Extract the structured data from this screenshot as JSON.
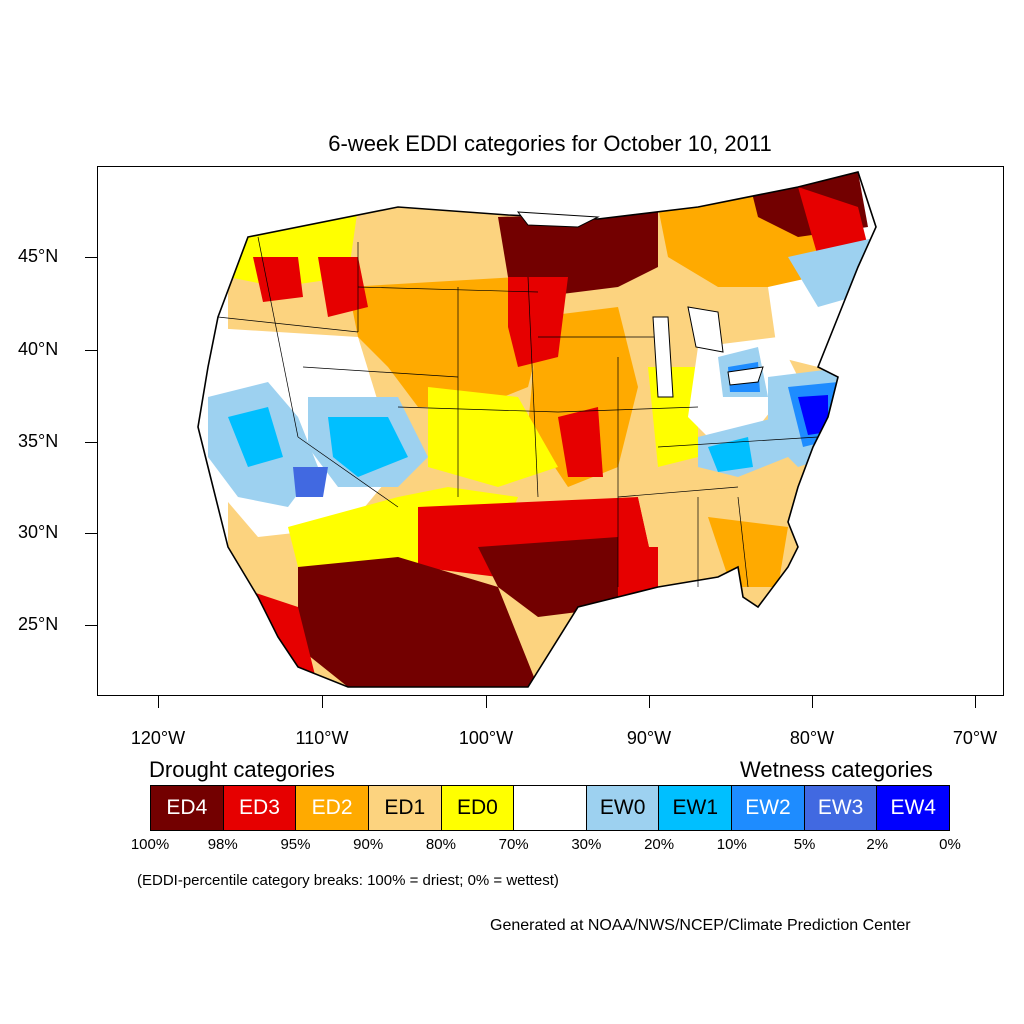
{
  "title": "6-week EDDI categories for October 10, 2011",
  "lat_labels": [
    "45°N",
    "40°N",
    "35°N",
    "30°N",
    "25°N"
  ],
  "lon_labels": [
    "120°W",
    "110°W",
    "100°W",
    "90°W",
    "80°W",
    "70°W"
  ],
  "legend": {
    "drought_heading": "Drought categories",
    "wetness_heading": "Wetness categories",
    "categories": [
      {
        "label": "ED4",
        "color": "#730000",
        "text_color": "#ffffff"
      },
      {
        "label": "ED3",
        "color": "#e60000",
        "text_color": "#ffffff"
      },
      {
        "label": "ED2",
        "color": "#ffaa00",
        "text_color": "#ffffff"
      },
      {
        "label": "ED1",
        "color": "#fcd37f",
        "text_color": "#000000"
      },
      {
        "label": "ED0",
        "color": "#ffff00",
        "text_color": "#000000"
      },
      {
        "label": "",
        "color": "#ffffff",
        "text_color": "#000000"
      },
      {
        "label": "EW0",
        "color": "#9dd1f0",
        "text_color": "#000000"
      },
      {
        "label": "EW1",
        "color": "#00bfff",
        "text_color": "#000000"
      },
      {
        "label": "EW2",
        "color": "#1e8cff",
        "text_color": "#ffffff"
      },
      {
        "label": "EW3",
        "color": "#4169e1",
        "text_color": "#ffffff"
      },
      {
        "label": "EW4",
        "color": "#0000ff",
        "text_color": "#ffffff"
      }
    ],
    "breaks": [
      "100%",
      "98%",
      "95%",
      "90%",
      "80%",
      "70%",
      "30%",
      "20%",
      "10%",
      "5%",
      "2%",
      "0%"
    ]
  },
  "note": "(EDDI-percentile category breaks: 100% = driest; 0% = wettest)",
  "credit": "Generated at NOAA/NWS/NCEP/Climate Prediction Center"
}
